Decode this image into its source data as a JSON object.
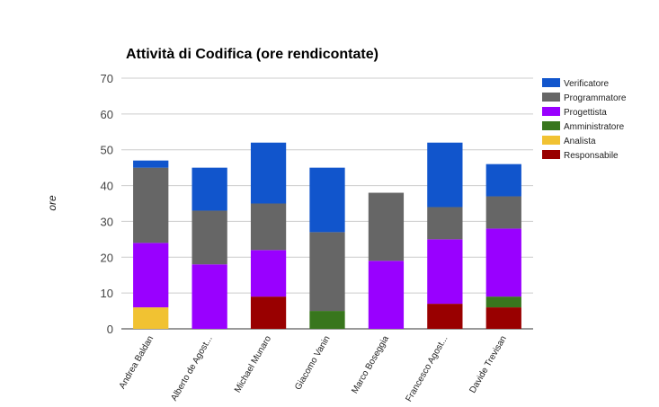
{
  "chart_data": {
    "type": "bar",
    "stacked": true,
    "title": "Attività di Codifica (ore rendicontate)",
    "xlabel": "",
    "ylabel": "ore",
    "ylim": [
      0,
      70
    ],
    "yticks": [
      0,
      10,
      20,
      30,
      40,
      50,
      60,
      70
    ],
    "grid": true,
    "legend_position": "right",
    "categories": [
      "Andrea Baldan",
      "Alberto de Agost...",
      "Michael Munaro",
      "Giacomo Vanin",
      "Marco Boseggia",
      "Francesco Agost...",
      "Davide Trevisan"
    ],
    "series": [
      {
        "name": "Responsabile",
        "color": "#990000",
        "values": [
          0,
          0,
          9,
          0,
          0,
          7,
          6
        ]
      },
      {
        "name": "Analista",
        "color": "#f1c232",
        "values": [
          6,
          0,
          0,
          0,
          0,
          0,
          0
        ]
      },
      {
        "name": "Amministratore",
        "color": "#38761d",
        "values": [
          0,
          0,
          0,
          5,
          0,
          0,
          3
        ]
      },
      {
        "name": "Progettista",
        "color": "#9900ff",
        "values": [
          18,
          18,
          13,
          0,
          19,
          18,
          19
        ]
      },
      {
        "name": "Programmatore",
        "color": "#666666",
        "values": [
          21,
          15,
          13,
          22,
          19,
          9,
          9
        ]
      },
      {
        "name": "Verificatore",
        "color": "#1155cc",
        "values": [
          2,
          12,
          17,
          18,
          0,
          18,
          9
        ]
      }
    ]
  }
}
